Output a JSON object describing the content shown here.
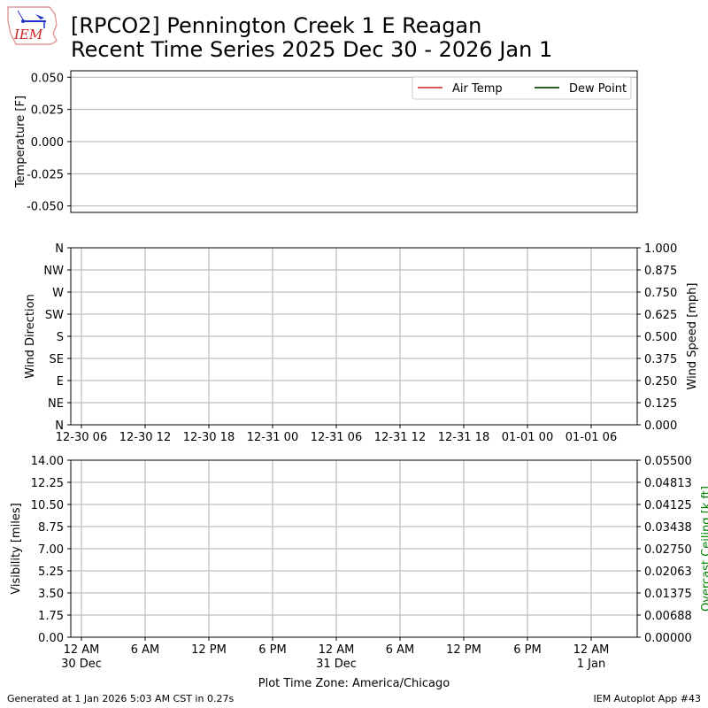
{
  "title_line1": "[RPCO2] Pennington Creek 1 E Reagan",
  "title_line2": "Recent Time Series 2025 Dec 30 - 2026 Jan 1",
  "logo_text": "IEM",
  "footer_left": "Generated at 1 Jan 2026 5:03 AM CST in 0.27s",
  "footer_right": "IEM Autoplot App #43",
  "chart_data": [
    {
      "type": "line",
      "ylabel": "Temperature [F]",
      "ylim": [
        -0.055,
        0.055
      ],
      "yticks": [
        "0.050",
        "0.025",
        "0.000",
        "-0.025",
        "-0.050"
      ],
      "ytick_values": [
        0.05,
        0.025,
        0,
        -0.025,
        -0.05
      ],
      "grid": "y",
      "legend_placement": "upper-right",
      "series": [
        {
          "name": "Air Temp",
          "color": "#e05a5a",
          "values": []
        },
        {
          "name": "Dew Point",
          "color": "#2e5e2e",
          "values": []
        }
      ]
    },
    {
      "type": "line",
      "ylabel": "Wind Direction",
      "yticks": [
        "N",
        "NE",
        "E",
        "SE",
        "S",
        "SW",
        "W",
        "NW",
        "N"
      ],
      "ylabel_right": "Wind Speed [mph]",
      "yticks_right": [
        "0.000",
        "0.125",
        "0.250",
        "0.375",
        "0.500",
        "0.625",
        "0.750",
        "0.875",
        "1.000"
      ],
      "xticks": [
        "12-30 06",
        "12-30 12",
        "12-30 18",
        "12-31 00",
        "12-31 06",
        "12-31 12",
        "12-31 18",
        "01-01 00",
        "01-01 06"
      ],
      "grid": "both",
      "series": []
    },
    {
      "type": "line",
      "ylabel": "Visibility [miles]",
      "yticks": [
        "0.00",
        "1.75",
        "3.50",
        "5.25",
        "7.00",
        "8.75",
        "10.50",
        "12.25",
        "14.00"
      ],
      "ylabel_right": "Overcast Ceiling [k ft]",
      "ylabel_right_color": "#008000",
      "yticks_right": [
        "0.00000",
        "0.00688",
        "0.01375",
        "0.02063",
        "0.02750",
        "0.03438",
        "0.04125",
        "0.04813",
        "0.05500"
      ],
      "xticks": [
        "12 AM\n30 Dec",
        "6 AM",
        "12 PM",
        "6 PM",
        "12 AM\n31 Dec",
        "6 AM",
        "12 PM",
        "6 PM",
        "12 AM\n1 Jan"
      ],
      "xlabel": "Plot Time Zone: America/Chicago",
      "grid": "both",
      "series": []
    }
  ]
}
